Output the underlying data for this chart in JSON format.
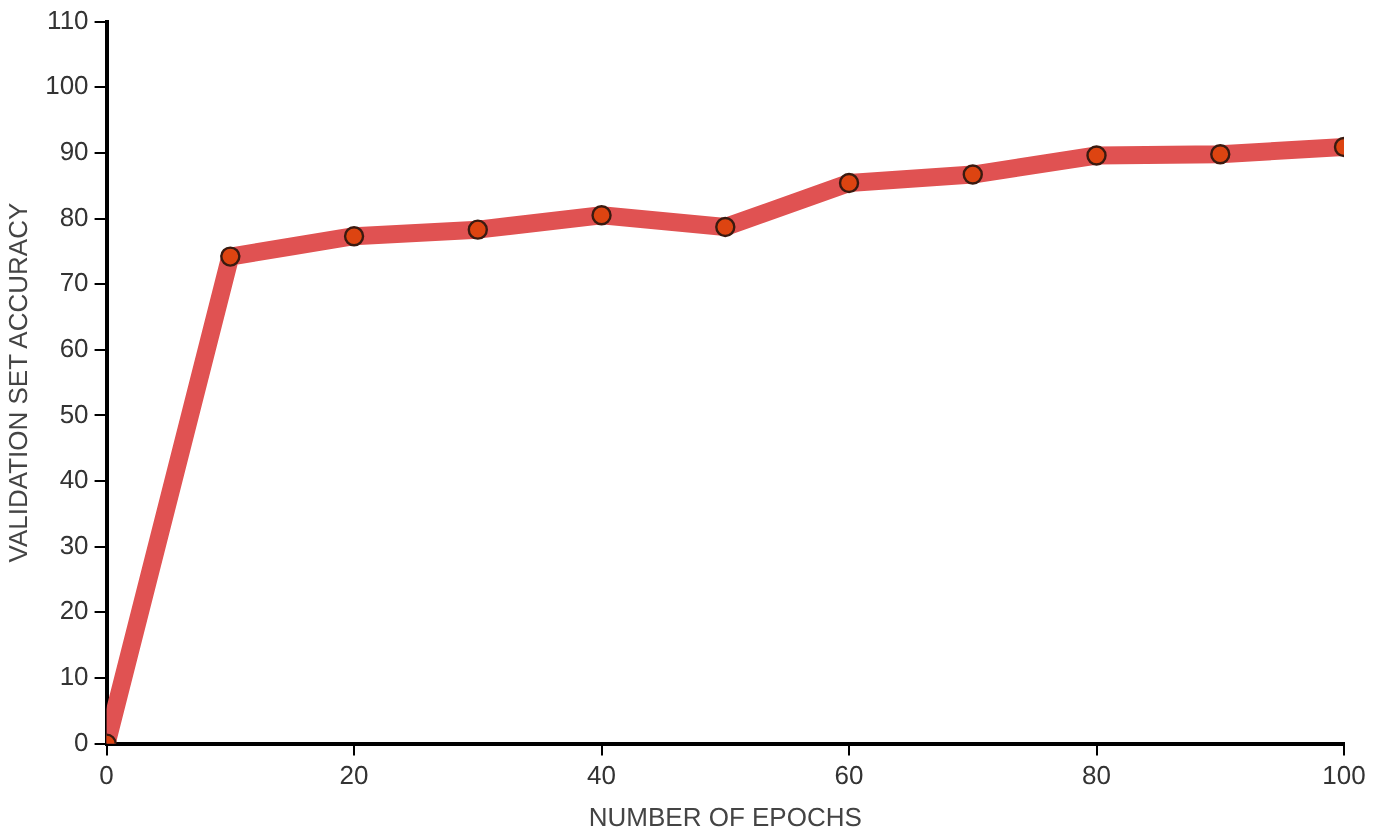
{
  "chart_data": {
    "type": "line",
    "xlabel": "NUMBER OF EPOCHS",
    "ylabel": "VALIDATION SET ACCURACY",
    "x": [
      0,
      10,
      20,
      30,
      40,
      50,
      60,
      70,
      80,
      90,
      100
    ],
    "series": [
      {
        "color": "#e05252",
        "values": [
          0,
          74.2,
          77.3,
          78.3,
          80.5,
          78.7,
          85.4,
          86.7,
          89.6,
          89.8,
          90.9
        ]
      }
    ],
    "xlim": [
      0,
      100
    ],
    "xticks": [
      0,
      20,
      40,
      60,
      80,
      100
    ],
    "ylim": [
      0,
      110
    ],
    "yticks": [
      0,
      10,
      20,
      30,
      40,
      50,
      60,
      70,
      80,
      90,
      100,
      110
    ],
    "grid": false,
    "legend": false,
    "marker": "circle",
    "line_style": "solid"
  }
}
